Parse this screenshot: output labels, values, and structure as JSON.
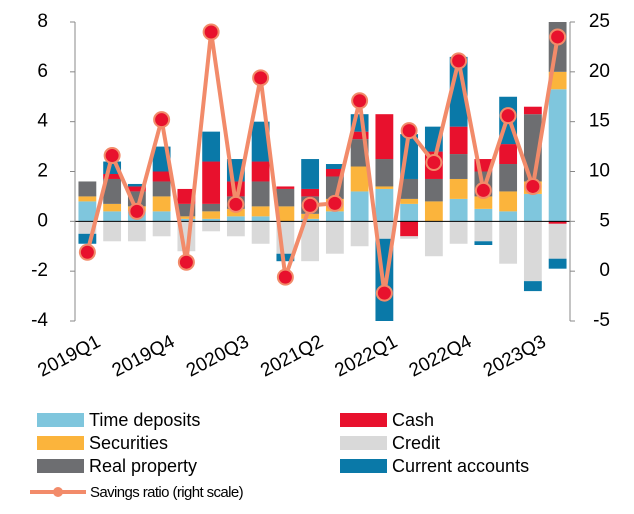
{
  "chart_data": {
    "type": "bar",
    "stacked": true,
    "categories": [
      "2019Q1",
      null,
      null,
      "2019Q4",
      null,
      null,
      "2020Q3",
      null,
      null,
      "2021Q2",
      null,
      null,
      "2022Q1",
      null,
      null,
      "2022Q4",
      null,
      null,
      "2023Q3",
      null
    ],
    "ylim": [
      -4,
      8
    ],
    "yticks": [
      -4,
      -2,
      0,
      2,
      4,
      6,
      8
    ],
    "y2lim": [
      -5,
      25
    ],
    "y2ticks": [
      -5,
      0,
      5,
      10,
      15,
      20,
      25
    ],
    "series": [
      {
        "name": "Time deposits",
        "color": "#7fc6dd",
        "values": [
          0.8,
          0.4,
          0.4,
          0.4,
          0.1,
          0.1,
          0.2,
          0.2,
          0,
          0.1,
          0.4,
          1.2,
          1.3,
          0.7,
          0,
          0.9,
          0.5,
          0.4,
          1.1,
          5.3
        ]
      },
      {
        "name": "Securities",
        "color": "#fbb43c",
        "values": [
          0.2,
          0.3,
          0.2,
          0.6,
          0.1,
          0.3,
          0.3,
          0.4,
          0.6,
          0.2,
          0.5,
          1.0,
          0.1,
          0.2,
          0.8,
          0.8,
          0.5,
          0.8,
          0.5,
          0.7
        ]
      },
      {
        "name": "Real property",
        "color": "#6d6e71",
        "values": [
          0.6,
          1.0,
          0.6,
          0.6,
          0.5,
          0.3,
          0.5,
          1.0,
          0.7,
          0.7,
          0.9,
          1.1,
          1.1,
          0.8,
          0.9,
          1.0,
          1.0,
          1.1,
          2.7,
          2.0
        ]
      },
      {
        "name": "Cash",
        "color": "#e8112d",
        "values": [
          0,
          0.2,
          0.2,
          0.4,
          0.6,
          1.7,
          0.6,
          0.8,
          0.1,
          0.3,
          0.3,
          0.3,
          1.8,
          -0.6,
          1.1,
          1.1,
          0.5,
          0.8,
          0.3,
          -0.1
        ]
      },
      {
        "name": "Credit",
        "color": "#d9d9d9",
        "values": [
          -0.5,
          -0.8,
          -0.8,
          -0.6,
          -1.2,
          -0.4,
          -0.6,
          -0.9,
          -1.3,
          -1.6,
          -1.3,
          -1.0,
          -0.7,
          -0.1,
          -1.4,
          -0.9,
          -0.8,
          -1.7,
          -2.4,
          -1.4
        ]
      },
      {
        "name": "Current accounts",
        "color": "#0a79a8",
        "values": [
          -0.4,
          0.5,
          0.1,
          1.0,
          0,
          1.2,
          0.9,
          1.6,
          -0.3,
          1.2,
          0.2,
          0.7,
          -3.3,
          1.8,
          1.0,
          2.8,
          -0.15,
          1.9,
          -0.4,
          -0.4
        ]
      },
      {
        "name": "Savings ratio (right scale)",
        "type": "line",
        "axis": "y2",
        "color": "#f28b6a",
        "marker_color": "#e8112d",
        "values": [
          1.9,
          11.6,
          6,
          15.2,
          0.9,
          24,
          6.7,
          19.4,
          -0.6,
          6.6,
          6.8,
          17.1,
          -2.2,
          14.1,
          10.9,
          21.1,
          8.1,
          15.6,
          8.5,
          23.5
        ]
      }
    ]
  }
}
